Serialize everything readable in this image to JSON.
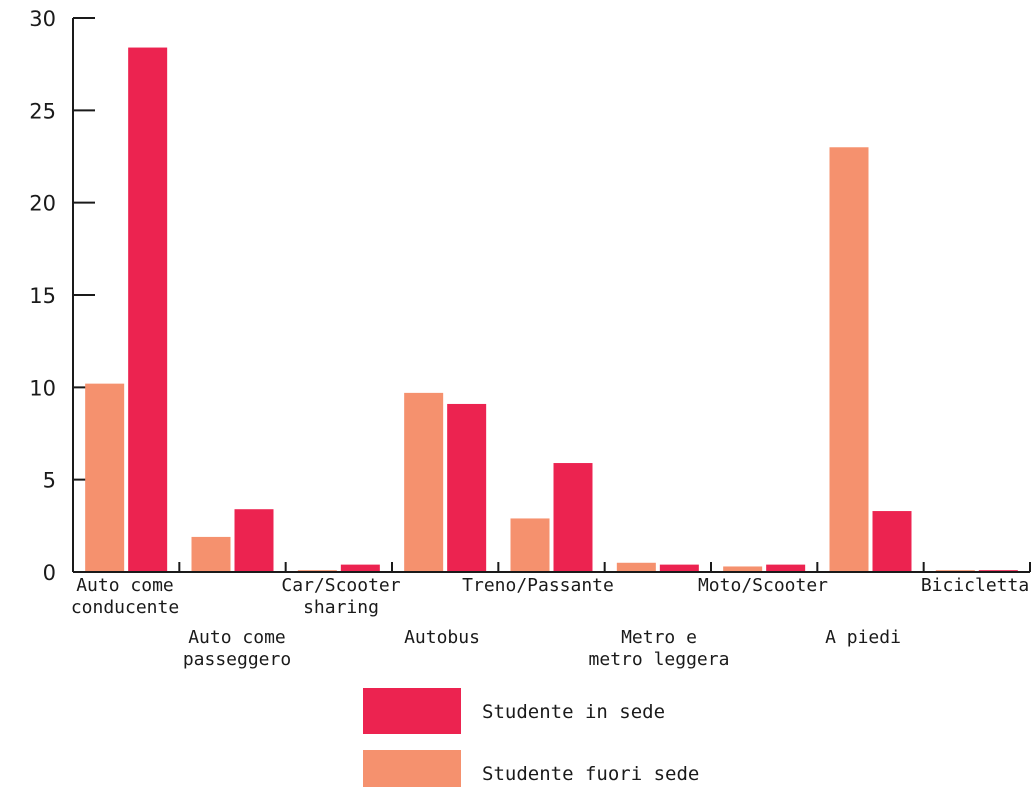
{
  "chart_data": {
    "type": "bar",
    "title": "",
    "xlabel": "",
    "ylabel": "",
    "ylim": [
      0,
      30
    ],
    "yticks": [
      0,
      5,
      10,
      15,
      20,
      25,
      30
    ],
    "grid": false,
    "legend_position": "bottom-center",
    "categories": [
      [
        "Auto come",
        "conducente"
      ],
      [
        "Auto come",
        "passeggero"
      ],
      [
        "Car/Scooter",
        "sharing"
      ],
      [
        "Autobus"
      ],
      [
        "Treno/Passante"
      ],
      [
        "Metro e",
        "metro leggera"
      ],
      [
        "Moto/Scooter"
      ],
      [
        "A piedi"
      ],
      [
        "Bicicletta"
      ]
    ],
    "series": [
      {
        "name": "Studente fuori sede",
        "color": "#f5916e",
        "values": [
          10.2,
          1.9,
          0.1,
          9.7,
          2.9,
          0.5,
          0.3,
          23.0,
          0.1
        ]
      },
      {
        "name": "Studente in sede",
        "color": "#ec2350",
        "values": [
          28.4,
          3.4,
          0.4,
          9.1,
          5.9,
          0.4,
          0.4,
          3.3,
          0.1
        ]
      }
    ],
    "legend_order": [
      "Studente in sede",
      "Studente fuori sede"
    ]
  }
}
